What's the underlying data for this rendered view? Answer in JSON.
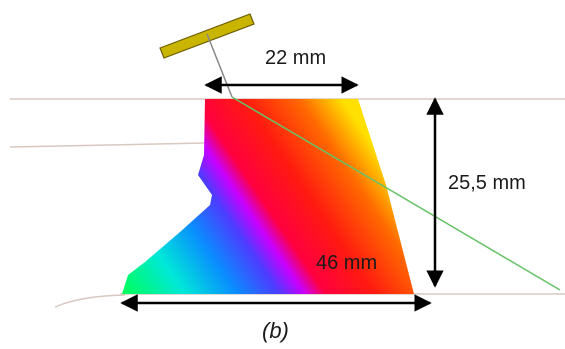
{
  "dimensions": {
    "top_width": "22 mm",
    "height": "25,5 mm",
    "bottom_width": "46 mm"
  },
  "caption": "(b)",
  "colors": {
    "probe": "#c9b400",
    "beam_line": "#66c266",
    "surface_line": "#d8c8c0",
    "arrow": "#000000"
  },
  "gradient_stops": [
    "#00ff66",
    "#00e0d0",
    "#0090ff",
    "#4a40ff",
    "#c000ff",
    "#ff0050",
    "#ff1010",
    "#ff6000",
    "#ffd000"
  ]
}
